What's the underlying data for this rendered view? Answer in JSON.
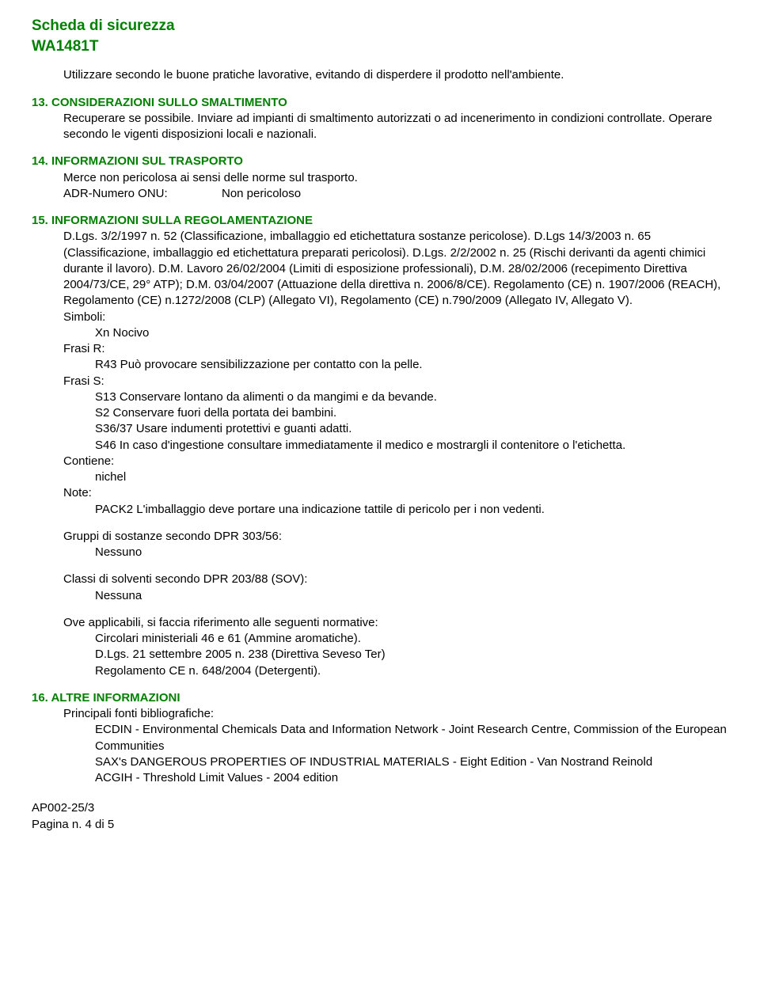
{
  "header": {
    "title1": "Scheda di sicurezza",
    "title2": "WA1481T"
  },
  "intro": "Utilizzare secondo le buone pratiche lavorative, evitando di disperdere il prodotto nell'ambiente.",
  "s13": {
    "heading": "13. CONSIDERAZIONI SULLO SMALTIMENTO",
    "body": "Recuperare se possibile. Inviare ad impianti di smaltimento autorizzati o ad incenerimento in condizioni controllate. Operare secondo le vigenti disposizioni locali e nazionali."
  },
  "s14": {
    "heading": "14. INFORMAZIONI SUL TRASPORTO",
    "line1": "Merce non pericolosa ai sensi delle norme sul trasporto.",
    "kv_key": "ADR-Numero ONU:",
    "kv_val": "Non pericoloso"
  },
  "s15": {
    "heading": "15. INFORMAZIONI SULLA REGOLAMENTAZIONE",
    "para": "D.Lgs. 3/2/1997 n. 52 (Classificazione, imballaggio ed etichettatura sostanze pericolose). D.Lgs 14/3/2003 n. 65 (Classificazione, imballaggio ed etichettatura preparati pericolosi). D.Lgs. 2/2/2002 n. 25 (Rischi derivanti da agenti chimici durante il lavoro). D.M. Lavoro 26/02/2004 (Limiti di esposizione professionali), D.M. 28/02/2006 (recepimento Direttiva 2004/73/CE, 29° ATP); D.M. 03/04/2007 (Attuazione della direttiva n. 2006/8/CE). Regolamento (CE) n. 1907/2006 (REACH), Regolamento (CE) n.1272/2008 (CLP) (Allegato VI), Regolamento (CE) n.790/2009 (Allegato IV, Allegato V).",
    "simboli_label": "Simboli:",
    "simboli_val": "Xn Nocivo",
    "frasiR_label": "Frasi R:",
    "frasiR_val": "R43 Può provocare sensibilizzazione per contatto con la pelle.",
    "frasiS_label": "Frasi S:",
    "frasiS_1": "S13 Conservare lontano da alimenti o da mangimi e da bevande.",
    "frasiS_2": "S2 Conservare fuori della portata dei bambini.",
    "frasiS_3": "S36/37 Usare indumenti protettivi e guanti adatti.",
    "frasiS_4": "S46 In caso d'ingestione consultare immediatamente il medico e mostrargli il contenitore o l'etichetta.",
    "contiene_label": "Contiene:",
    "contiene_val": "nichel",
    "note_label": "Note:",
    "note_val": "PACK2 L'imballaggio deve portare una indicazione tattile di pericolo per i non vedenti.",
    "gruppi_label": "Gruppi di sostanze secondo DPR 303/56:",
    "gruppi_val": "Nessuno",
    "classi_label": "Classi di solventi secondo DPR 203/88 (SOV):",
    "classi_val": "Nessuna",
    "ove_label": "Ove applicabili, si faccia riferimento alle seguenti normative:",
    "ove_1": "Circolari ministeriali 46 e 61 (Ammine aromatiche).",
    "ove_2": "D.Lgs. 21 settembre 2005 n. 238 (Direttiva Seveso Ter)",
    "ove_3": "Regolamento CE n. 648/2004 (Detergenti)."
  },
  "s16": {
    "heading": "16. ALTRE INFORMAZIONI",
    "label": "Principali fonti bibliografiche:",
    "b1": "ECDIN - Environmental Chemicals Data and Information Network - Joint Research Centre, Commission of the European Communities",
    "b2": "SAX's DANGEROUS PROPERTIES OF INDUSTRIAL MATERIALS - Eight Edition - Van Nostrand Reinold",
    "b3": "ACGIH - Threshold Limit Values - 2004 edition"
  },
  "footer": {
    "code": "AP002-25/3",
    "page": "Pagina n. 4  di 5"
  }
}
